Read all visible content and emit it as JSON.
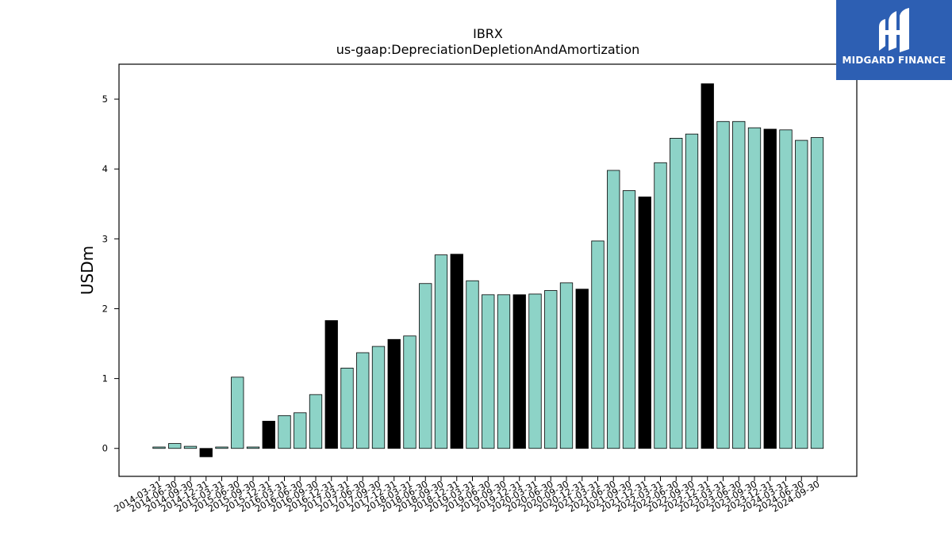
{
  "chart_data": {
    "type": "bar",
    "title": "IBRX",
    "subtitle": "us-gaap:DepreciationDepletionAndAmortization",
    "xlabel": "",
    "ylabel": "USDm",
    "ylim": [
      -0.4,
      5.5
    ],
    "yticks": [
      0,
      1,
      2,
      3,
      4,
      5
    ],
    "grid": false,
    "categories": [
      "2014-03-31",
      "2014-06-30",
      "2014-09-30",
      "2014-12-31",
      "2015-03-31",
      "2015-06-30",
      "2015-09-30",
      "2015-12-31",
      "2016-03-31",
      "2016-06-30",
      "2016-09-30",
      "2016-12-31",
      "2017-03-31",
      "2017-06-30",
      "2017-09-30",
      "2017-12-31",
      "2018-03-31",
      "2018-06-30",
      "2018-09-30",
      "2018-12-31",
      "2019-03-31",
      "2019-06-30",
      "2019-09-30",
      "2019-12-31",
      "2020-03-31",
      "2020-06-30",
      "2020-09-30",
      "2020-12-31",
      "2021-03-31",
      "2021-06-30",
      "2021-09-30",
      "2021-12-31",
      "2022-03-31",
      "2022-06-30",
      "2022-09-30",
      "2022-12-31",
      "2023-03-31",
      "2023-06-30",
      "2023-09-30",
      "2023-12-31",
      "2024-03-31",
      "2024-06-30",
      "2024-09-30"
    ],
    "values": [
      0.02,
      0.07,
      0.03,
      -0.12,
      0.02,
      1.02,
      0.02,
      0.39,
      0.47,
      0.51,
      0.77,
      1.83,
      1.15,
      1.37,
      1.46,
      1.56,
      1.61,
      2.36,
      2.77,
      2.78,
      2.4,
      2.2,
      2.2,
      2.2,
      2.21,
      2.26,
      2.37,
      2.28,
      2.97,
      3.98,
      3.69,
      3.6,
      4.09,
      4.44,
      4.5,
      5.22,
      4.68,
      4.68,
      4.59,
      4.57,
      4.56,
      4.41,
      4.45
    ],
    "highlight_indices": [
      3,
      7,
      11,
      15,
      19,
      23,
      27,
      31,
      35,
      39
    ],
    "colors": {
      "normal": "#8dd3c7",
      "highlight": "#000000",
      "edge": "#000000"
    }
  },
  "logo": {
    "brand": "MIDGARD FINANCE",
    "icon": "midgard-logo-icon",
    "background": "#2d5fb3"
  }
}
